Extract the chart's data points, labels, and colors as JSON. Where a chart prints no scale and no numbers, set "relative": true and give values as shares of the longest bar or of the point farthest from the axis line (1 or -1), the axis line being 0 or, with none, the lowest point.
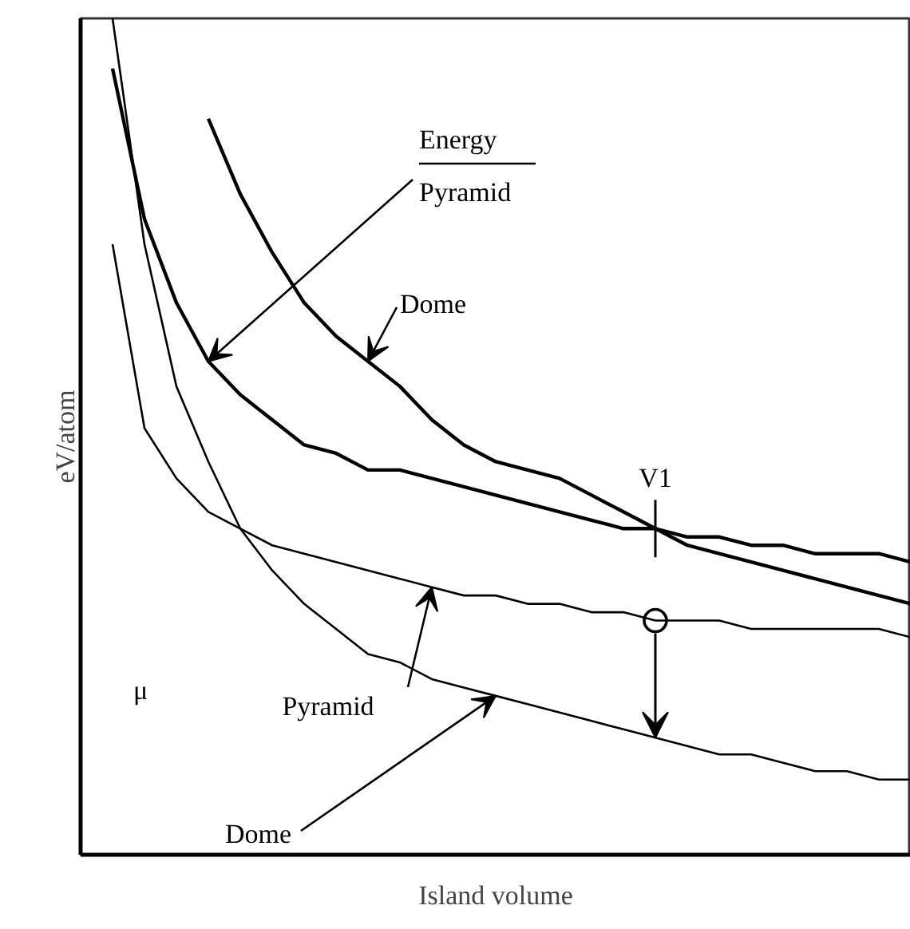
{
  "chart_data": {
    "type": "line",
    "relative": true,
    "xlabel": "Island volume",
    "ylabel": "eV/atom",
    "categories": [
      null,
      null,
      null,
      null,
      null,
      null,
      null,
      null,
      null,
      null,
      null,
      null,
      null,
      null,
      null,
      null,
      null,
      null,
      null,
      null,
      null,
      null,
      null,
      null,
      null,
      null,
      null
    ],
    "annotations": [
      "Energy",
      "V1",
      "μ"
    ],
    "series": [
      {
        "name": "Pyramid",
        "color": "#000000",
        "values": [
          null,
          0.94,
          0.76,
          0.66,
          0.59,
          0.55,
          0.52,
          0.49,
          0.48,
          0.46,
          0.46,
          0.45,
          0.44,
          0.43,
          0.42,
          0.41,
          0.4,
          0.39,
          0.39,
          0.38,
          0.38,
          0.37,
          0.37,
          0.36,
          0.36,
          0.36,
          0.35
        ]
      },
      {
        "name": "Dome",
        "color": "#000000",
        "values": [
          null,
          null,
          null,
          null,
          0.88,
          0.79,
          0.72,
          0.66,
          0.62,
          0.59,
          0.56,
          0.52,
          0.49,
          0.47,
          0.46,
          0.45,
          0.43,
          0.41,
          0.39,
          0.37,
          0.36,
          0.35,
          0.34,
          0.33,
          0.32,
          0.31,
          0.3
        ]
      },
      {
        "name": "Pyramid",
        "color": "#000000",
        "values": [
          null,
          0.73,
          0.51,
          0.45,
          0.41,
          0.39,
          0.37,
          0.36,
          0.35,
          0.34,
          0.33,
          0.32,
          0.31,
          0.31,
          0.3,
          0.3,
          0.29,
          0.29,
          0.28,
          0.28,
          0.28,
          0.27,
          0.27,
          0.27,
          0.27,
          0.27,
          0.26
        ]
      },
      {
        "name": "Dome",
        "color": "#000000",
        "values": [
          null,
          1.0,
          0.73,
          0.56,
          0.47,
          0.39,
          0.34,
          0.3,
          0.27,
          0.24,
          0.23,
          0.21,
          0.2,
          0.19,
          0.18,
          0.17,
          0.16,
          0.15,
          0.14,
          0.13,
          0.12,
          0.12,
          0.11,
          0.1,
          0.1,
          0.09,
          0.09
        ]
      }
    ]
  }
}
